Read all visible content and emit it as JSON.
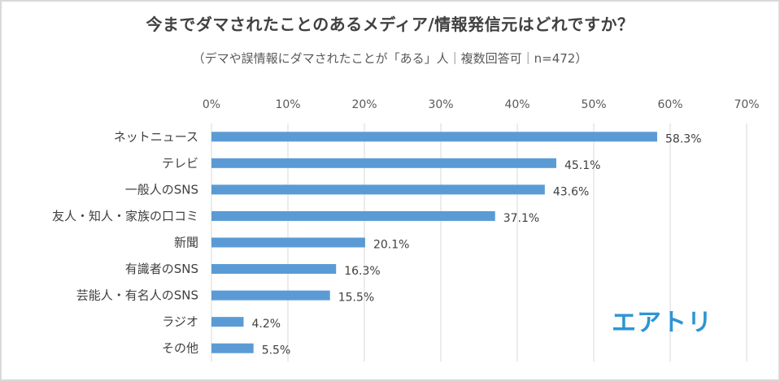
{
  "chart_data": {
    "type": "bar",
    "orientation": "horizontal",
    "title": "今までダマされたことのあるメディア/情報発信元はどれですか？",
    "subtitle": "（デマや誤情報にダマされたことが「ある」人｜複数回答可｜n=472）",
    "categories": [
      "ネットニュース",
      "テレビ",
      "一般人のSNS",
      "友人・知人・家族の口コミ",
      "新聞",
      "有識者のSNS",
      "芸能人・有名人のSNS",
      "ラジオ",
      "その他"
    ],
    "values": [
      58.3,
      45.1,
      43.6,
      37.1,
      20.1,
      16.3,
      15.5,
      4.2,
      5.5
    ],
    "value_labels": [
      "58.3%",
      "45.1%",
      "43.6%",
      "37.1%",
      "20.1%",
      "16.3%",
      "15.5%",
      "4.2%",
      "5.5%"
    ],
    "xlim": [
      0,
      70
    ],
    "x_ticks": [
      "0%",
      "10%",
      "20%",
      "30%",
      "40%",
      "50%",
      "60%",
      "70%"
    ],
    "axis_position": "top",
    "grid": true,
    "bar_color": "#5b9bd5",
    "grid_color": "#d9d9d9"
  },
  "logo": {
    "text": "エアトリ",
    "color": "#2e95d3"
  }
}
